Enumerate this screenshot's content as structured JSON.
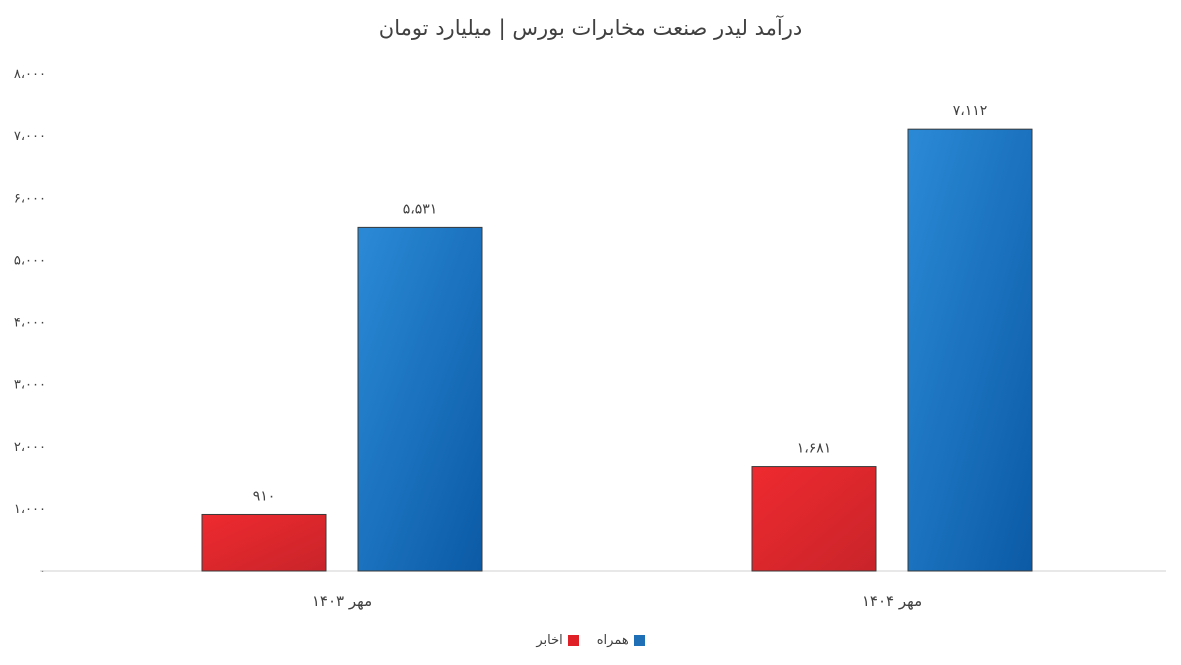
{
  "chart_data": {
    "type": "bar",
    "title": "درآمد لیدر صنعت مخابرات بورس | میلیارد تومان",
    "categories": [
      "مهر ۱۴۰۳",
      "مهر ۱۴۰۴"
    ],
    "series": [
      {
        "name": "همراه",
        "color": "#1f6fb7",
        "values": [
          5531,
          7112
        ],
        "labels": [
          "۵،۵۳۱",
          "۷،۱۱۲"
        ]
      },
      {
        "name": "اخابر",
        "color": "#e02027",
        "values": [
          910,
          1681
        ],
        "labels": [
          "۹۱۰",
          "۱،۶۸۱"
        ]
      }
    ],
    "ylim": [
      0,
      8000
    ],
    "yticks": [
      0,
      1000,
      2000,
      3000,
      4000,
      5000,
      6000,
      7000,
      8000
    ],
    "ytick_labels": [
      "۰",
      "۱،۰۰۰",
      "۲،۰۰۰",
      "۳،۰۰۰",
      "۴،۰۰۰",
      "۵،۰۰۰",
      "۶،۰۰۰",
      "۷،۰۰۰",
      "۸،۰۰۰"
    ],
    "grid": false,
    "legend_position": "bottom"
  }
}
